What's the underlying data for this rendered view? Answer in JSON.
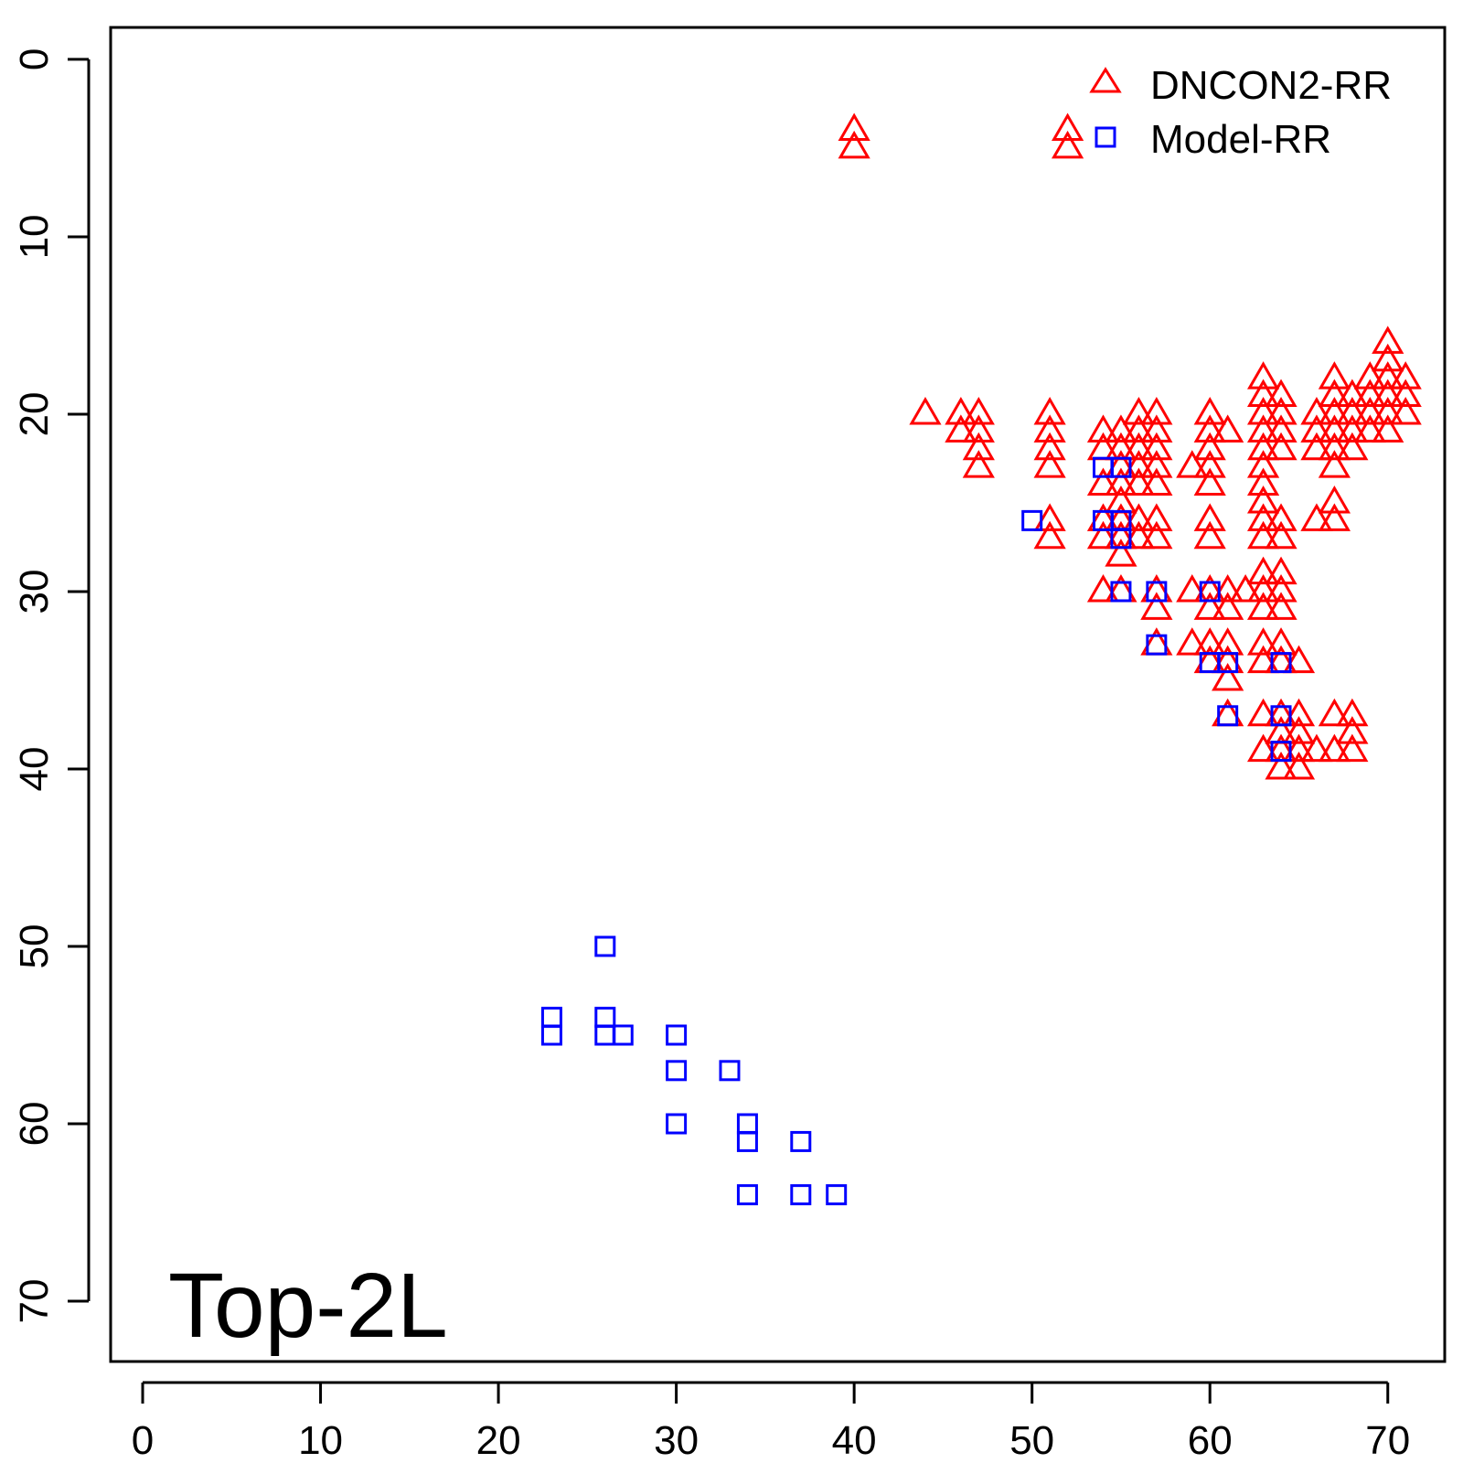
{
  "chart_data": {
    "type": "scatter",
    "title": "",
    "xlabel": "",
    "ylabel": "",
    "annotation": "Top-2L",
    "xlim": [
      -1.8,
      73.2
    ],
    "ylim": [
      -1.8,
      73.4
    ],
    "y_reversed": true,
    "grid": false,
    "legend_position": "top-right",
    "x_ticks": [
      "0",
      "10",
      "20",
      "30",
      "40",
      "50",
      "60",
      "70"
    ],
    "x_tick_values": [
      0,
      10,
      20,
      30,
      40,
      50,
      60,
      70
    ],
    "y_ticks": [
      "0",
      "10",
      "20",
      "30",
      "40",
      "50",
      "60",
      "70"
    ],
    "y_tick_values": [
      0,
      10,
      20,
      30,
      40,
      50,
      60,
      70
    ],
    "series": [
      {
        "name": "DNCON2-RR",
        "marker": "triangle",
        "color": "#ff0000",
        "points": [
          [
            40,
            4
          ],
          [
            40,
            5
          ],
          [
            52,
            4
          ],
          [
            52,
            5
          ],
          [
            44,
            20
          ],
          [
            46,
            20
          ],
          [
            46,
            21
          ],
          [
            47,
            20
          ],
          [
            47,
            21
          ],
          [
            47,
            22
          ],
          [
            47,
            23
          ],
          [
            51,
            20
          ],
          [
            51,
            21
          ],
          [
            51,
            22
          ],
          [
            51,
            23
          ],
          [
            51,
            26
          ],
          [
            51,
            27
          ],
          [
            54,
            21
          ],
          [
            54,
            22
          ],
          [
            54,
            24
          ],
          [
            54,
            26
          ],
          [
            54,
            27
          ],
          [
            54,
            30
          ],
          [
            55,
            21
          ],
          [
            55,
            22
          ],
          [
            55,
            23
          ],
          [
            55,
            24
          ],
          [
            55,
            25
          ],
          [
            55,
            26
          ],
          [
            55,
            27
          ],
          [
            55,
            28
          ],
          [
            55,
            30
          ],
          [
            56,
            20
          ],
          [
            56,
            21
          ],
          [
            56,
            22
          ],
          [
            56,
            23
          ],
          [
            56,
            24
          ],
          [
            56,
            26
          ],
          [
            56,
            27
          ],
          [
            57,
            20
          ],
          [
            57,
            21
          ],
          [
            57,
            22
          ],
          [
            57,
            23
          ],
          [
            57,
            24
          ],
          [
            57,
            26
          ],
          [
            57,
            27
          ],
          [
            57,
            30
          ],
          [
            57,
            31
          ],
          [
            57,
            33
          ],
          [
            59,
            23
          ],
          [
            59,
            30
          ],
          [
            59,
            33
          ],
          [
            60,
            20
          ],
          [
            60,
            21
          ],
          [
            60,
            22
          ],
          [
            60,
            23
          ],
          [
            60,
            24
          ],
          [
            60,
            26
          ],
          [
            60,
            27
          ],
          [
            60,
            30
          ],
          [
            60,
            31
          ],
          [
            60,
            33
          ],
          [
            60,
            34
          ],
          [
            61,
            21
          ],
          [
            61,
            30
          ],
          [
            61,
            31
          ],
          [
            61,
            33
          ],
          [
            61,
            34
          ],
          [
            61,
            35
          ],
          [
            61,
            37
          ],
          [
            62,
            30
          ],
          [
            63,
            18
          ],
          [
            63,
            19
          ],
          [
            63,
            20
          ],
          [
            63,
            21
          ],
          [
            63,
            22
          ],
          [
            63,
            23
          ],
          [
            63,
            24
          ],
          [
            63,
            25
          ],
          [
            63,
            26
          ],
          [
            63,
            27
          ],
          [
            63,
            29
          ],
          [
            63,
            30
          ],
          [
            63,
            31
          ],
          [
            63,
            33
          ],
          [
            63,
            34
          ],
          [
            63,
            37
          ],
          [
            63,
            39
          ],
          [
            64,
            19
          ],
          [
            64,
            20
          ],
          [
            64,
            21
          ],
          [
            64,
            22
          ],
          [
            64,
            26
          ],
          [
            64,
            27
          ],
          [
            64,
            29
          ],
          [
            64,
            30
          ],
          [
            64,
            31
          ],
          [
            64,
            33
          ],
          [
            64,
            34
          ],
          [
            64,
            37
          ],
          [
            64,
            38
          ],
          [
            64,
            39
          ],
          [
            64,
            40
          ],
          [
            65,
            34
          ],
          [
            65,
            37
          ],
          [
            65,
            38
          ],
          [
            65,
            39
          ],
          [
            65,
            40
          ],
          [
            66,
            20
          ],
          [
            66,
            21
          ],
          [
            66,
            22
          ],
          [
            66,
            26
          ],
          [
            66,
            39
          ],
          [
            67,
            18
          ],
          [
            67,
            19
          ],
          [
            67,
            20
          ],
          [
            67,
            21
          ],
          [
            67,
            22
          ],
          [
            67,
            23
          ],
          [
            67,
            25
          ],
          [
            67,
            26
          ],
          [
            67,
            37
          ],
          [
            67,
            39
          ],
          [
            68,
            19
          ],
          [
            68,
            20
          ],
          [
            68,
            21
          ],
          [
            68,
            22
          ],
          [
            68,
            37
          ],
          [
            68,
            38
          ],
          [
            68,
            39
          ],
          [
            69,
            18
          ],
          [
            69,
            19
          ],
          [
            69,
            20
          ],
          [
            69,
            21
          ],
          [
            70,
            16
          ],
          [
            70,
            17
          ],
          [
            70,
            18
          ],
          [
            70,
            19
          ],
          [
            70,
            20
          ],
          [
            70,
            21
          ],
          [
            71,
            18
          ],
          [
            71,
            19
          ],
          [
            71,
            20
          ]
        ]
      },
      {
        "name": "Model-RR",
        "marker": "square",
        "color": "#0000ff",
        "points": [
          [
            26,
            50
          ],
          [
            23,
            54
          ],
          [
            23,
            55
          ],
          [
            26,
            54
          ],
          [
            26,
            55
          ],
          [
            27,
            55
          ],
          [
            30,
            55
          ],
          [
            30,
            57
          ],
          [
            30,
            60
          ],
          [
            33,
            57
          ],
          [
            34,
            60
          ],
          [
            34,
            61
          ],
          [
            34,
            64
          ],
          [
            37,
            61
          ],
          [
            37,
            64
          ],
          [
            39,
            64
          ],
          [
            50,
            26
          ],
          [
            54,
            23
          ],
          [
            54,
            26
          ],
          [
            55,
            23
          ],
          [
            55,
            26
          ],
          [
            55,
            27
          ],
          [
            55,
            30
          ],
          [
            57,
            30
          ],
          [
            57,
            33
          ],
          [
            60,
            30
          ],
          [
            60,
            34
          ],
          [
            61,
            34
          ],
          [
            61,
            37
          ],
          [
            64,
            34
          ],
          [
            64,
            37
          ],
          [
            64,
            39
          ]
        ]
      }
    ]
  }
}
